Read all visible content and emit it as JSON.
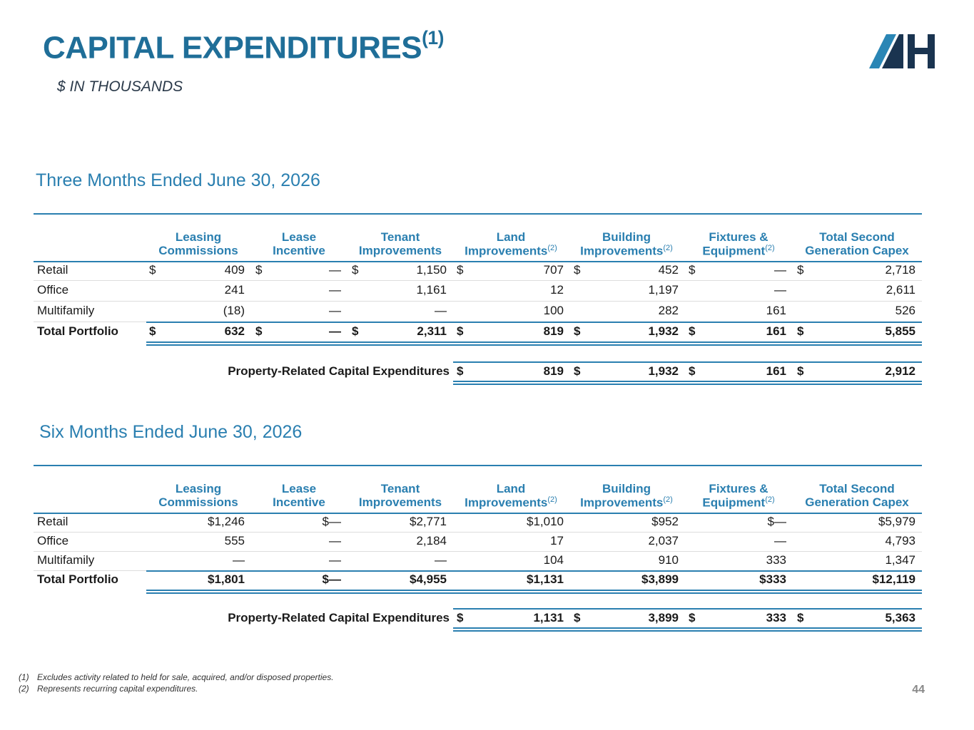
{
  "header": {
    "title": "CAPITAL EXPENDITURES",
    "title_note": "(1)",
    "subtitle": "$ IN THOUSANDS"
  },
  "tables": [
    {
      "title": "Three Months Ended June 30, 2026",
      "columns": [
        {
          "lines": [
            "Leasing",
            "Commissions"
          ]
        },
        {
          "lines": [
            "Lease",
            "Incentive"
          ]
        },
        {
          "lines": [
            "Tenant",
            "Improvements"
          ]
        },
        {
          "lines": [
            "Land",
            "Improvements"
          ],
          "note": "(2)"
        },
        {
          "lines": [
            "Building",
            "Improvements"
          ],
          "note": "(2)"
        },
        {
          "lines": [
            "Fixtures &",
            "Equipment"
          ],
          "note": "(2)"
        },
        {
          "lines": [
            "Total Second",
            "Generation Capex"
          ]
        }
      ],
      "rows": [
        {
          "label": "Retail",
          "cells": [
            {
              "currency": "$",
              "amount": "409"
            },
            {
              "currency": "$",
              "amount": "—"
            },
            {
              "currency": "$",
              "amount": "1,150"
            },
            {
              "currency": "$",
              "amount": "707"
            },
            {
              "currency": "$",
              "amount": "452"
            },
            {
              "currency": "$",
              "amount": "—"
            },
            {
              "currency": "$",
              "amount": "2,718"
            }
          ]
        },
        {
          "label": "Office",
          "cells": [
            {
              "amount": "241"
            },
            {
              "amount": "—"
            },
            {
              "amount": "1,161"
            },
            {
              "amount": "12"
            },
            {
              "amount": "1,197"
            },
            {
              "amount": "—"
            },
            {
              "amount": "2,611"
            }
          ]
        },
        {
          "label": "Multifamily",
          "cells": [
            {
              "amount": "(18)"
            },
            {
              "amount": "—"
            },
            {
              "amount": "—"
            },
            {
              "amount": "100"
            },
            {
              "amount": "282"
            },
            {
              "amount": "161"
            },
            {
              "amount": "526"
            }
          ]
        },
        {
          "label": "Total Portfolio",
          "cells": [
            {
              "currency": "$",
              "amount": "632"
            },
            {
              "currency": "$",
              "amount": "—"
            },
            {
              "currency": "$",
              "amount": "2,311"
            },
            {
              "currency": "$",
              "amount": "819"
            },
            {
              "currency": "$",
              "amount": "1,932"
            },
            {
              "currency": "$",
              "amount": "161"
            },
            {
              "currency": "$",
              "amount": "5,855"
            }
          ]
        }
      ],
      "property_row": {
        "label": "Property-Related Capital Expenditures",
        "cells": [
          {
            "currency": "$",
            "amount": "819"
          },
          {
            "currency": "$",
            "amount": "1,932"
          },
          {
            "currency": "$",
            "amount": "161"
          },
          {
            "currency": "$",
            "amount": "2,912"
          }
        ]
      }
    },
    {
      "title": "Six Months Ended June 30, 2026",
      "columns": [
        {
          "lines": [
            "Leasing",
            "Commissions"
          ]
        },
        {
          "lines": [
            "Lease",
            "Incentive"
          ]
        },
        {
          "lines": [
            "Tenant",
            "Improvements"
          ]
        },
        {
          "lines": [
            "Land",
            "Improvements"
          ],
          "note": "(2)"
        },
        {
          "lines": [
            "Building",
            "Improvements"
          ],
          "note": "(2)"
        },
        {
          "lines": [
            "Fixtures &",
            "Equipment"
          ],
          "note": "(2)"
        },
        {
          "lines": [
            "Total Second",
            "Generation Capex"
          ]
        }
      ],
      "rows": [
        {
          "label": "Retail",
          "cells": [
            {
              "amount": "$1,246"
            },
            {
              "amount": "$—"
            },
            {
              "amount": "$2,771"
            },
            {
              "amount": "$1,010"
            },
            {
              "amount": "$952"
            },
            {
              "amount": "$—"
            },
            {
              "amount": "$5,979"
            }
          ]
        },
        {
          "label": "Office",
          "cells": [
            {
              "amount": "555"
            },
            {
              "amount": "—"
            },
            {
              "amount": "2,184"
            },
            {
              "amount": "17"
            },
            {
              "amount": "2,037"
            },
            {
              "amount": "—"
            },
            {
              "amount": "4,793"
            }
          ]
        },
        {
          "label": "Multifamily",
          "cells": [
            {
              "amount": "—"
            },
            {
              "amount": "—"
            },
            {
              "amount": "—"
            },
            {
              "amount": "104"
            },
            {
              "amount": "910"
            },
            {
              "amount": "333"
            },
            {
              "amount": "1,347"
            }
          ]
        },
        {
          "label": "Total Portfolio",
          "cells": [
            {
              "amount": "$1,801"
            },
            {
              "amount": "$—"
            },
            {
              "amount": "$4,955"
            },
            {
              "amount": "$1,131"
            },
            {
              "amount": "$3,899"
            },
            {
              "amount": "$333"
            },
            {
              "amount": "$12,119"
            }
          ]
        }
      ],
      "property_row": {
        "label": "Property-Related Capital Expenditures",
        "cells": [
          {
            "currency": "$",
            "amount": "1,131"
          },
          {
            "currency": "$",
            "amount": "3,899"
          },
          {
            "currency": "$",
            "amount": "333"
          },
          {
            "currency": "$",
            "amount": "5,363"
          }
        ]
      }
    }
  ],
  "footnotes": [
    {
      "mark": "(1)",
      "text": "Excludes activity related to held for sale, acquired, and/or disposed properties."
    },
    {
      "mark": "(2)",
      "text": "Represents recurring capital expenditures."
    }
  ],
  "page_number": "44"
}
